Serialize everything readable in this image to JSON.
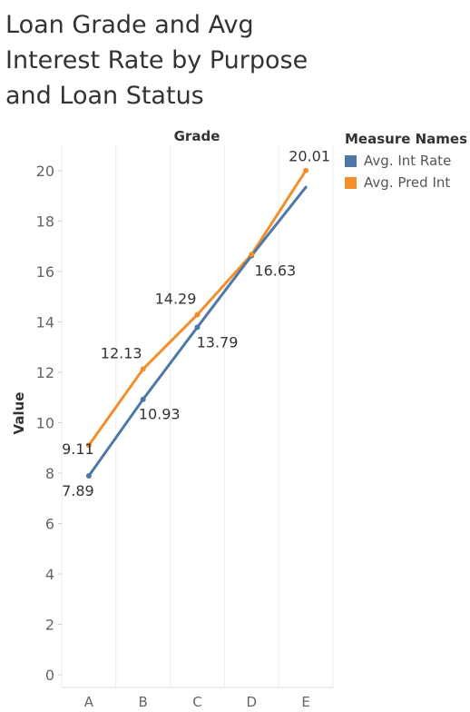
{
  "title": "Loan Grade and Avg Interest Rate by Purpose and Loan Status",
  "legend": {
    "title": "Measure Names",
    "items": [
      {
        "label": "Avg. Int Rate",
        "color": "#4e79a7"
      },
      {
        "label": "Avg. Pred Int",
        "color": "#f28e2b"
      }
    ]
  },
  "chart_data": {
    "type": "line",
    "column_header": "Grade",
    "ylabel": "Value",
    "xlabel": "",
    "categories": [
      "A",
      "B",
      "C",
      "D",
      "E"
    ],
    "ylim": [
      0,
      20
    ],
    "yticks": [
      0,
      2,
      4,
      6,
      8,
      10,
      12,
      14,
      16,
      18,
      20
    ],
    "grid": "vertical",
    "legend_position": "right",
    "series": [
      {
        "name": "Avg. Int Rate",
        "color": "#4e79a7",
        "values": [
          7.89,
          10.93,
          13.79,
          16.63,
          19.35
        ],
        "labels": [
          "7.89",
          "10.93",
          "13.79",
          "16.63",
          ""
        ]
      },
      {
        "name": "Avg. Pred Int",
        "color": "#f28e2b",
        "values": [
          9.11,
          12.13,
          14.29,
          16.68,
          20.01
        ],
        "labels": [
          "9.11",
          "12.13",
          "14.29",
          "",
          "20.01"
        ]
      }
    ]
  }
}
